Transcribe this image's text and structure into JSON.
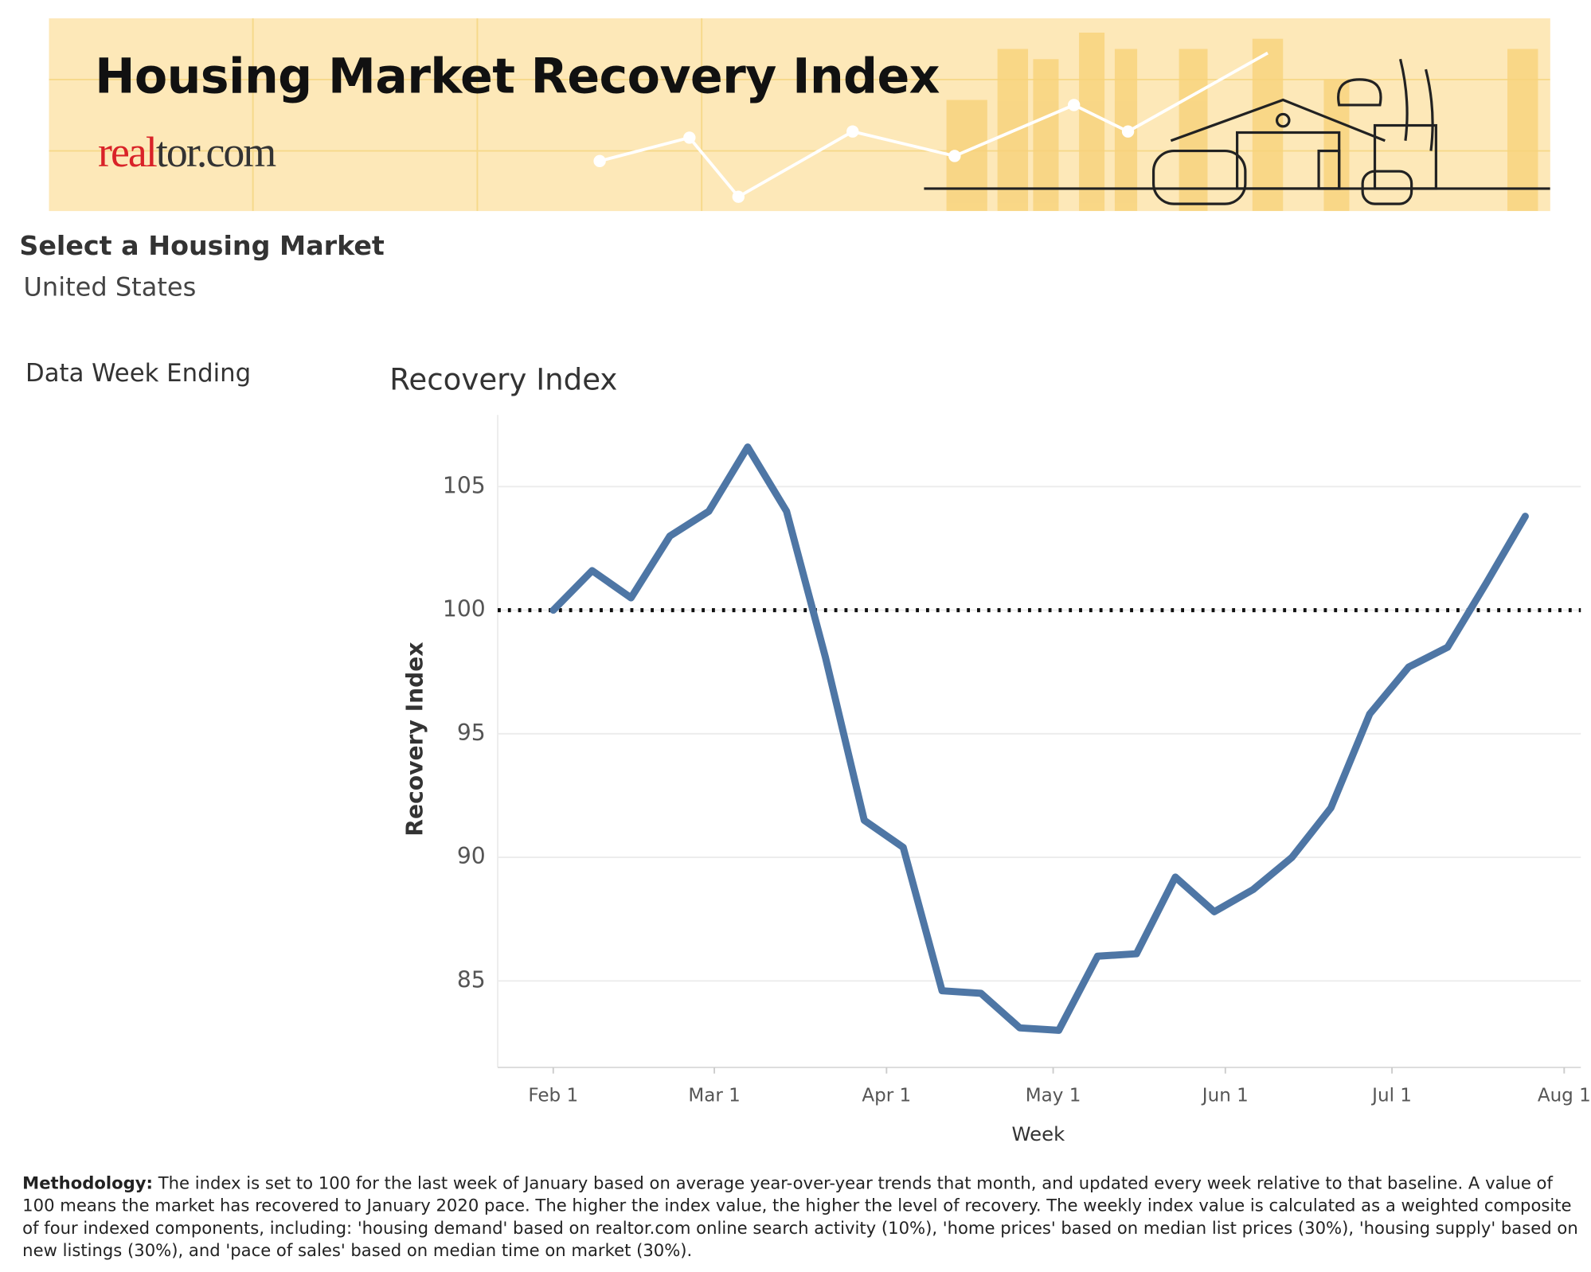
{
  "header": {
    "title": "Housing Market Recovery Index",
    "logo": [
      "real",
      "tor.com"
    ]
  },
  "filters": {
    "market_label": "Select a Housing Market",
    "market_value": "United States",
    "week_label": "Data Week Ending"
  },
  "chart_data": {
    "type": "line",
    "title": "Recovery Index",
    "y_label": "Recovery Index",
    "x_label": "Week",
    "x": [
      "02-01",
      "02-08",
      "02-15",
      "02-22",
      "02-29",
      "03-07",
      "03-14",
      "03-21",
      "03-28",
      "04-04",
      "04-11",
      "04-18",
      "04-25",
      "05-02",
      "05-09",
      "05-16",
      "05-23",
      "05-30",
      "06-06",
      "06-13",
      "06-20",
      "06-27",
      "07-04",
      "07-11",
      "07-18",
      "07-25"
    ],
    "series": [
      {
        "name": "Recovery Index",
        "color": "#4e76a5",
        "values": [
          100.0,
          101.6,
          100.5,
          103.0,
          104.0,
          106.6,
          104.0,
          98.1,
          91.5,
          90.4,
          84.6,
          84.5,
          83.1,
          83.0,
          86.0,
          86.1,
          89.2,
          87.8,
          88.7,
          90.0,
          92.0,
          95.8,
          97.7,
          98.5,
          101.1,
          103.8
        ]
      }
    ],
    "xlim": [
      "01-22",
      "08-04"
    ],
    "xticks": [
      {
        "value": "02-01",
        "label": "Feb 1"
      },
      {
        "value": "03-01",
        "label": "Mar 1"
      },
      {
        "value": "04-01",
        "label": "Apr 1"
      },
      {
        "value": "05-01",
        "label": "May 1"
      },
      {
        "value": "06-01",
        "label": "Jun 1"
      },
      {
        "value": "07-01",
        "label": "Jul 1"
      },
      {
        "value": "08-01",
        "label": "Aug 1"
      }
    ],
    "ylim": [
      81.5,
      107.9
    ],
    "yticks": [
      85,
      90,
      95,
      100,
      105
    ],
    "grid": true,
    "reference_line": 100
  },
  "methodology": {
    "label": "Methodology:",
    "text": " The index is set to 100 for the last week of January based on average year-over-year trends that month, and updated every week relative to that baseline. A value of 100 means the market has recovered to January 2020 pace. The higher the index value, the higher the level of recovery. The weekly index value is calculated as a weighted composite of four indexed components, including: 'housing demand' based on realtor.com online search activity (10%), 'home prices' based on median list prices (30%), 'housing supply' based on new listings (30%), and 'pace of sales' based on median time on market (30%)."
  }
}
